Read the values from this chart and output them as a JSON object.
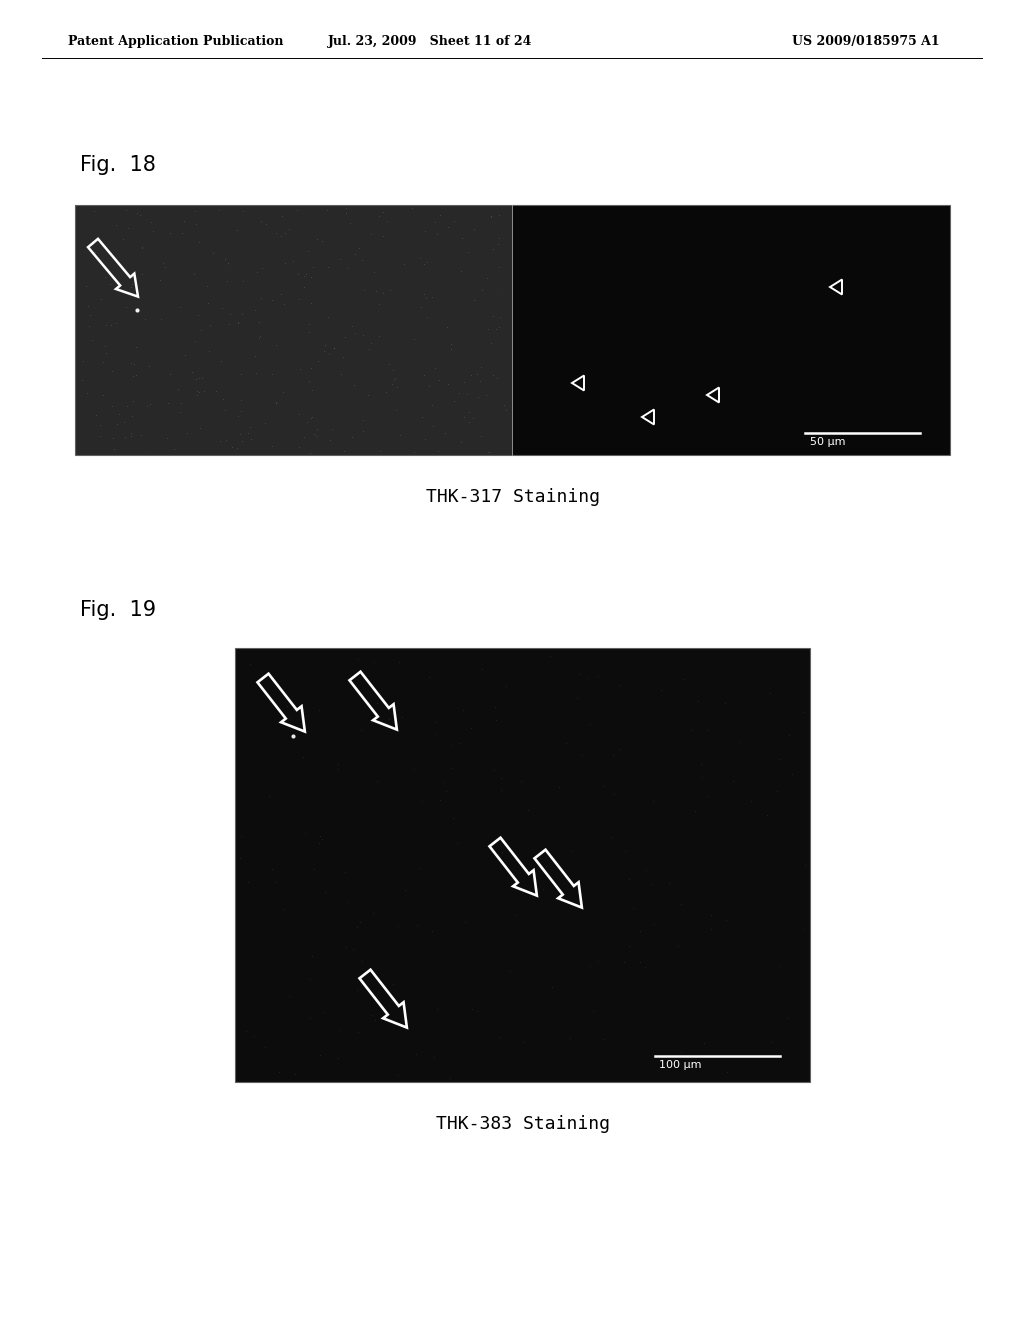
{
  "background_color": "#ffffff",
  "header_left": "Patent Application Publication",
  "header_mid": "Jul. 23, 2009   Sheet 11 of 24",
  "header_right": "US 2009/0185975 A1",
  "fig18_label": "Fig.  18",
  "fig18_caption": "THK-317 Staining",
  "fig18_scale_text": "50 μm",
  "fig19_label": "Fig.  19",
  "fig19_caption": "THK-383 Staining",
  "fig19_scale_text": "100 μm",
  "left_panel_color": "#303030",
  "right_panel_color": "#0a0a0a",
  "fig19_bg": "#0c0c0c"
}
